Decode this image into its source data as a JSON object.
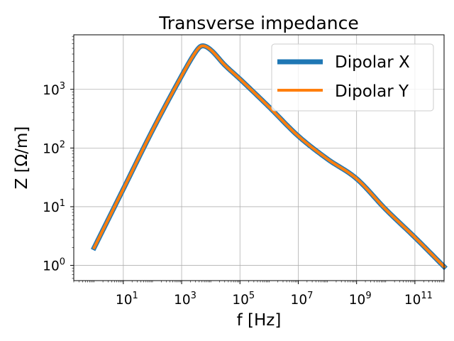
{
  "chart_data": {
    "type": "line",
    "title": "Transverse impedance",
    "xlabel": "f [Hz]",
    "ylabel": "Z [Ω/m]",
    "x_scale": "log",
    "y_scale": "log",
    "xlim": [
      0.2,
      1000000000000.0
    ],
    "ylim": [
      0.55,
      8500
    ],
    "grid": true,
    "legend_position": "top-right",
    "x_major_ticks": [
      10,
      1000,
      100000,
      10000000,
      1000000000,
      100000000000
    ],
    "x_tick_labels": [
      {
        "base": "10",
        "exp": "1"
      },
      {
        "base": "10",
        "exp": "3"
      },
      {
        "base": "10",
        "exp": "5"
      },
      {
        "base": "10",
        "exp": "7"
      },
      {
        "base": "10",
        "exp": "9"
      },
      {
        "base": "10",
        "exp": "11"
      }
    ],
    "y_major_ticks": [
      1,
      10,
      100,
      1000
    ],
    "y_tick_labels": [
      {
        "base": "10",
        "exp": "0"
      },
      {
        "base": "10",
        "exp": "1"
      },
      {
        "base": "10",
        "exp": "2"
      },
      {
        "base": "10",
        "exp": "3"
      }
    ],
    "series": [
      {
        "name": "Dipolar X",
        "color": "#1f77b4",
        "x": [
          1,
          10,
          100,
          1000,
          3000,
          5000,
          10000,
          30000,
          100000,
          1000000,
          10000000,
          100000000,
          1000000000,
          10000000000,
          100000000000,
          1000000000000
        ],
        "y": [
          2,
          20,
          200,
          1700,
          4300,
          5500,
          4700,
          2600,
          1500,
          500,
          160,
          65,
          30,
          9,
          3,
          0.95
        ]
      },
      {
        "name": "Dipolar Y",
        "color": "#ff7f0e",
        "x": [
          1,
          10,
          100,
          1000,
          3000,
          5000,
          10000,
          30000,
          100000,
          1000000,
          10000000,
          100000000,
          1000000000,
          10000000000,
          100000000000,
          1000000000000
        ],
        "y": [
          2,
          20,
          200,
          1700,
          4300,
          5500,
          4700,
          2600,
          1500,
          500,
          160,
          65,
          30,
          9,
          3,
          0.95
        ]
      }
    ]
  }
}
